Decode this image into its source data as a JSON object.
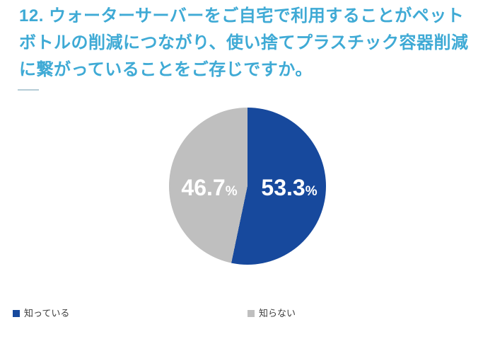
{
  "title": "12. ウォーターサーバーをご自宅で利用することがペットボトルの削減につながり、使い捨てプラスチック容器削減に繋がっていることをご存じですか。",
  "colors": {
    "title_accent": "#3faad5",
    "divider": "#b5ccd6",
    "label_text": "#ffffff",
    "legend_text": "#3d3d3d"
  },
  "chart_data": {
    "type": "pie",
    "title": "12. ウォーターサーバーをご自宅で利用することがペットボトルの削減につながり、使い捨てプラスチック容器削減に繋がっていることをご存じですか。",
    "start_angle_deg": 0,
    "direction": "clockwise",
    "legend_position": "bottom",
    "slices": [
      {
        "label": "知っている",
        "value": 53.3,
        "display_value": "53.3",
        "unit": "%",
        "color": "#17499d"
      },
      {
        "label": "知らない",
        "value": 46.7,
        "display_value": "46.7",
        "unit": "%",
        "color": "#bfbfbf"
      }
    ]
  },
  "legend": {
    "items": [
      {
        "label": "知っている",
        "color": "#17499d"
      },
      {
        "label": "知らない",
        "color": "#bfbfbf"
      }
    ]
  }
}
